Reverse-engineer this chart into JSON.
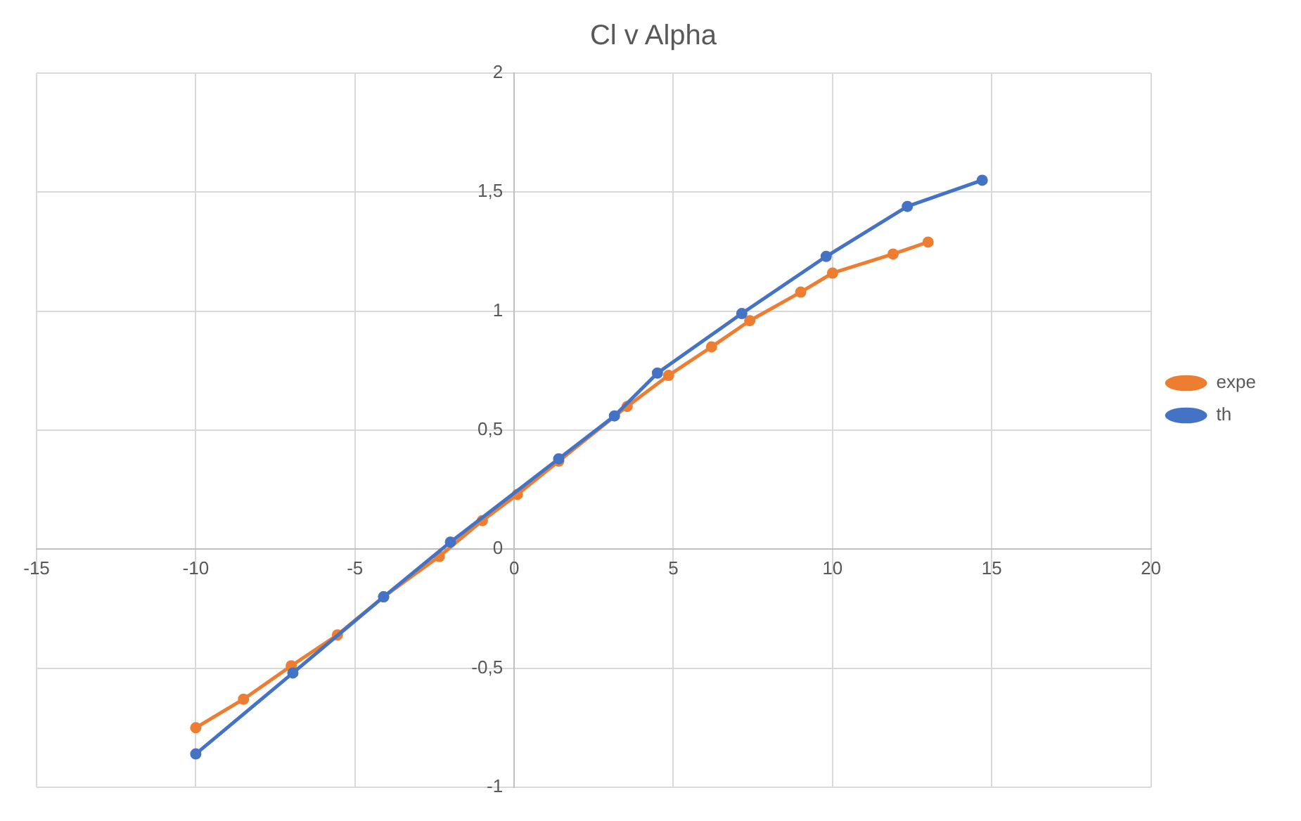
{
  "chart_data": {
    "type": "line",
    "title": "Cl v Alpha",
    "series": [
      {
        "name": "expe",
        "color": "#ed7d31",
        "x": [
          -10,
          -8.5,
          -7,
          -5.55,
          -4.1,
          -2.35,
          -1,
          0.1,
          1.4,
          3.55,
          4.85,
          6.2,
          7.4,
          9,
          10,
          11.9,
          13
        ],
        "values": [
          -0.75,
          -0.63,
          -0.49,
          -0.36,
          -0.2,
          -0.03,
          0.12,
          0.23,
          0.37,
          0.6,
          0.73,
          0.85,
          0.96,
          1.08,
          1.16,
          1.24,
          1.29
        ]
      },
      {
        "name": "th",
        "color": "#4472c4",
        "x": [
          -10,
          -6.95,
          -4.1,
          -2,
          1.4,
          3.15,
          4.5,
          7.15,
          9.8,
          12.35,
          14.7
        ],
        "values": [
          -0.86,
          -0.52,
          -0.2,
          0.03,
          0.38,
          0.56,
          0.74,
          0.99,
          1.23,
          1.44,
          1.55
        ]
      }
    ],
    "xlim": [
      -15,
      20
    ],
    "xticks": [
      -15,
      -10,
      -5,
      0,
      5,
      10,
      15,
      20
    ],
    "ylim": [
      -1,
      2
    ],
    "yticks": [
      -1,
      {
        "value": -0.5,
        "label": "-0,5"
      },
      0,
      {
        "value": 0.5,
        "label": "0,5"
      },
      1,
      {
        "value": 1.5,
        "label": "1,5"
      },
      2
    ],
    "grid": true,
    "legend": "right",
    "marker": "circle",
    "line_style": "solid"
  }
}
